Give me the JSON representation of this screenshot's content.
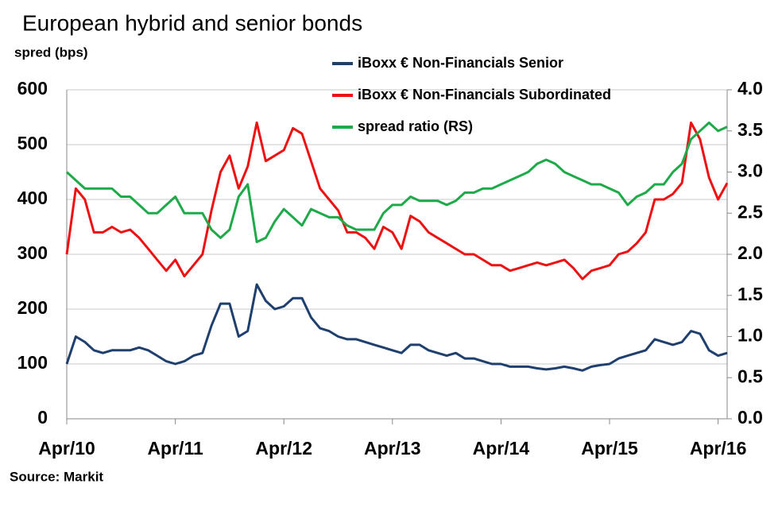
{
  "chart_data": {
    "type": "line",
    "title": "European hybrid and senior bonds",
    "subtitle": "spred (bps)",
    "source": "Source: Markit",
    "x": [
      "2010-04",
      "2010-05",
      "2010-06",
      "2010-07",
      "2010-08",
      "2010-09",
      "2010-10",
      "2010-11",
      "2010-12",
      "2011-01",
      "2011-02",
      "2011-03",
      "2011-04",
      "2011-05",
      "2011-06",
      "2011-07",
      "2011-08",
      "2011-09",
      "2011-10",
      "2011-11",
      "2011-12",
      "2012-01",
      "2012-02",
      "2012-03",
      "2012-04",
      "2012-05",
      "2012-06",
      "2012-07",
      "2012-08",
      "2012-09",
      "2012-10",
      "2012-11",
      "2012-12",
      "2013-01",
      "2013-02",
      "2013-03",
      "2013-04",
      "2013-05",
      "2013-06",
      "2013-07",
      "2013-08",
      "2013-09",
      "2013-10",
      "2013-11",
      "2013-12",
      "2014-01",
      "2014-02",
      "2014-03",
      "2014-04",
      "2014-05",
      "2014-06",
      "2014-07",
      "2014-08",
      "2014-09",
      "2014-10",
      "2014-11",
      "2014-12",
      "2015-01",
      "2015-02",
      "2015-03",
      "2015-04",
      "2015-05",
      "2015-06",
      "2015-07",
      "2015-08",
      "2015-09",
      "2015-10",
      "2015-11",
      "2015-12",
      "2016-01",
      "2016-02",
      "2016-03",
      "2016-04",
      "2016-05"
    ],
    "xlim": [
      "2010-04",
      "2016-05"
    ],
    "xticks": [
      {
        "value": "2010-04",
        "label": "Apr/10"
      },
      {
        "value": "2011-04",
        "label": "Apr/11"
      },
      {
        "value": "2012-04",
        "label": "Apr/12"
      },
      {
        "value": "2013-04",
        "label": "Apr/13"
      },
      {
        "value": "2014-04",
        "label": "Apr/14"
      },
      {
        "value": "2015-04",
        "label": "Apr/15"
      },
      {
        "value": "2016-04",
        "label": "Apr/16"
      }
    ],
    "ylim": [
      0,
      600
    ],
    "yticks": [
      0,
      100,
      200,
      300,
      400,
      500,
      600
    ],
    "y2lim": [
      0,
      4
    ],
    "y2ticks": [
      {
        "value": 0,
        "label": "0.0"
      },
      0.5,
      {
        "value": 1,
        "label": "1.0"
      },
      1.5,
      {
        "value": 2,
        "label": "2.0"
      },
      2.5,
      {
        "value": 3,
        "label": "3.0"
      },
      3.5,
      {
        "value": 4,
        "label": "4.0"
      }
    ],
    "grid": true,
    "series": [
      {
        "name": "iBoxx € Non-Financials Senior",
        "color": "#1f3f6e",
        "values": [
          100,
          150,
          140,
          125,
          120,
          125,
          125,
          125,
          130,
          125,
          115,
          105,
          100,
          105,
          115,
          120,
          170,
          210,
          210,
          150,
          160,
          245,
          215,
          200,
          205,
          220,
          220,
          185,
          165,
          160,
          150,
          145,
          145,
          140,
          135,
          130,
          125,
          120,
          135,
          135,
          125,
          120,
          115,
          120,
          110,
          110,
          105,
          100,
          100,
          95,
          95,
          95,
          92,
          90,
          92,
          95,
          92,
          88,
          95,
          98,
          100,
          110,
          115,
          120,
          125,
          145,
          140,
          135,
          140,
          160,
          155,
          125,
          115,
          120
        ]
      },
      {
        "name": "iBoxx € Non-Financials Subordinated",
        "color": "#ee1111",
        "values": [
          300,
          420,
          400,
          340,
          340,
          350,
          340,
          345,
          330,
          310,
          290,
          270,
          290,
          260,
          280,
          300,
          380,
          450,
          480,
          420,
          460,
          540,
          470,
          480,
          490,
          530,
          520,
          470,
          420,
          400,
          380,
          340,
          340,
          330,
          310,
          350,
          340,
          310,
          370,
          360,
          340,
          330,
          320,
          310,
          300,
          300,
          290,
          280,
          280,
          270,
          275,
          280,
          285,
          280,
          285,
          290,
          275,
          255,
          270,
          275,
          280,
          300,
          305,
          320,
          340,
          400,
          400,
          410,
          430,
          540,
          510,
          440,
          400,
          430
        ]
      },
      {
        "name": "spread ratio (RS)",
        "color": "#1faa4a",
        "axis": "y2",
        "values": [
          3.0,
          2.9,
          2.8,
          2.8,
          2.8,
          2.8,
          2.7,
          2.7,
          2.6,
          2.5,
          2.5,
          2.6,
          2.7,
          2.5,
          2.5,
          2.5,
          2.3,
          2.2,
          2.3,
          2.7,
          2.85,
          2.15,
          2.2,
          2.4,
          2.55,
          2.45,
          2.35,
          2.55,
          2.5,
          2.45,
          2.45,
          2.35,
          2.3,
          2.3,
          2.3,
          2.5,
          2.6,
          2.6,
          2.7,
          2.65,
          2.65,
          2.65,
          2.6,
          2.65,
          2.75,
          2.75,
          2.8,
          2.8,
          2.85,
          2.9,
          2.95,
          3.0,
          3.1,
          3.15,
          3.1,
          3.0,
          2.95,
          2.9,
          2.85,
          2.85,
          2.8,
          2.75,
          2.6,
          2.7,
          2.75,
          2.85,
          2.85,
          3.0,
          3.1,
          3.4,
          3.5,
          3.6,
          3.5,
          3.55
        ]
      }
    ]
  }
}
